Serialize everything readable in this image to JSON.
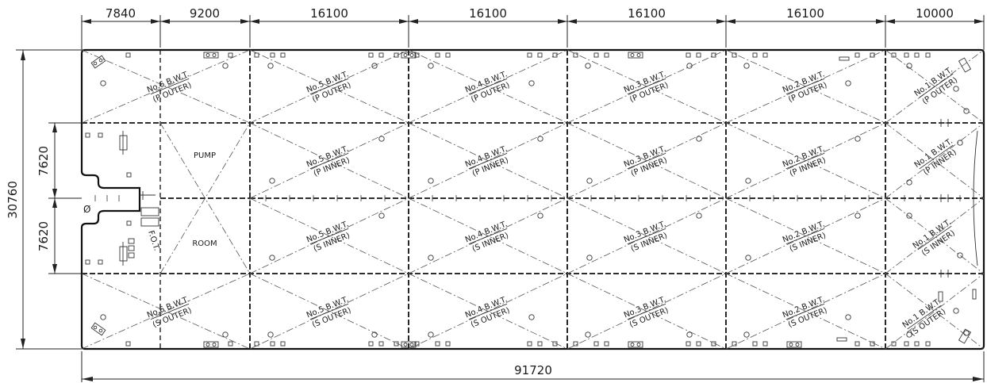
{
  "top_dimensions": [
    "7840",
    "9200",
    "16100",
    "16100",
    "16100",
    "16100",
    "10000"
  ],
  "overall_length": "91720",
  "overall_breadth": "30760",
  "side_dimensions": [
    "7620",
    "7620"
  ],
  "symbols": {
    "aft_marker": "Ø"
  },
  "rooms": {
    "pump_line1": "PUMP",
    "pump_line2": "ROOM",
    "fot": "F.O.T."
  },
  "tanks": {
    "p_outer": [
      {
        "name": "No.6 B.W.T.",
        "side": "(P OUTER)"
      },
      {
        "name": "No.5 B.W.T.",
        "side": "(P OUTER)"
      },
      {
        "name": "No.4 B.W.T.",
        "side": "(P OUTER)"
      },
      {
        "name": "No.3 B.W.T.",
        "side": "(P OUTER)"
      },
      {
        "name": "No.2 B.W.T.",
        "side": "(P OUTER)"
      },
      {
        "name": "No.1 B.W.T.",
        "side": "(P OUTER)"
      }
    ],
    "p_inner": [
      {
        "name": "No.5 B.W.T.",
        "side": "(P INNER)"
      },
      {
        "name": "No.4 B.W.T.",
        "side": "(P INNER)"
      },
      {
        "name": "No.3 B.W.T.",
        "side": "(P INNER)"
      },
      {
        "name": "No.2 B.W.T.",
        "side": "(P INNER)"
      },
      {
        "name": "No.1 B.W.T.",
        "side": "(P INNER)"
      }
    ],
    "s_inner": [
      {
        "name": "No.5 B.W.T.",
        "side": "(S INNER)"
      },
      {
        "name": "No.4 B.W.T.",
        "side": "(S INNER)"
      },
      {
        "name": "No.3 B.W.T.",
        "side": "(S INNER)"
      },
      {
        "name": "No.2 B.W.T.",
        "side": "(S INNER)"
      },
      {
        "name": "No.1 B.W.T.",
        "side": "(S INNER)"
      }
    ],
    "s_outer": [
      {
        "name": "No.6 B.W.T.",
        "side": "(S OUTER)"
      },
      {
        "name": "No.5 B.W.T.",
        "side": "(S OUTER)"
      },
      {
        "name": "No.4 B.W.T.",
        "side": "(S OUTER)"
      },
      {
        "name": "No.3 B.W.T.",
        "side": "(S OUTER)"
      },
      {
        "name": "No.2 B.W.T.",
        "side": "(S OUTER)"
      },
      {
        "name": "No.1 B.W.T.",
        "side": "(S OUTER)"
      }
    ]
  }
}
